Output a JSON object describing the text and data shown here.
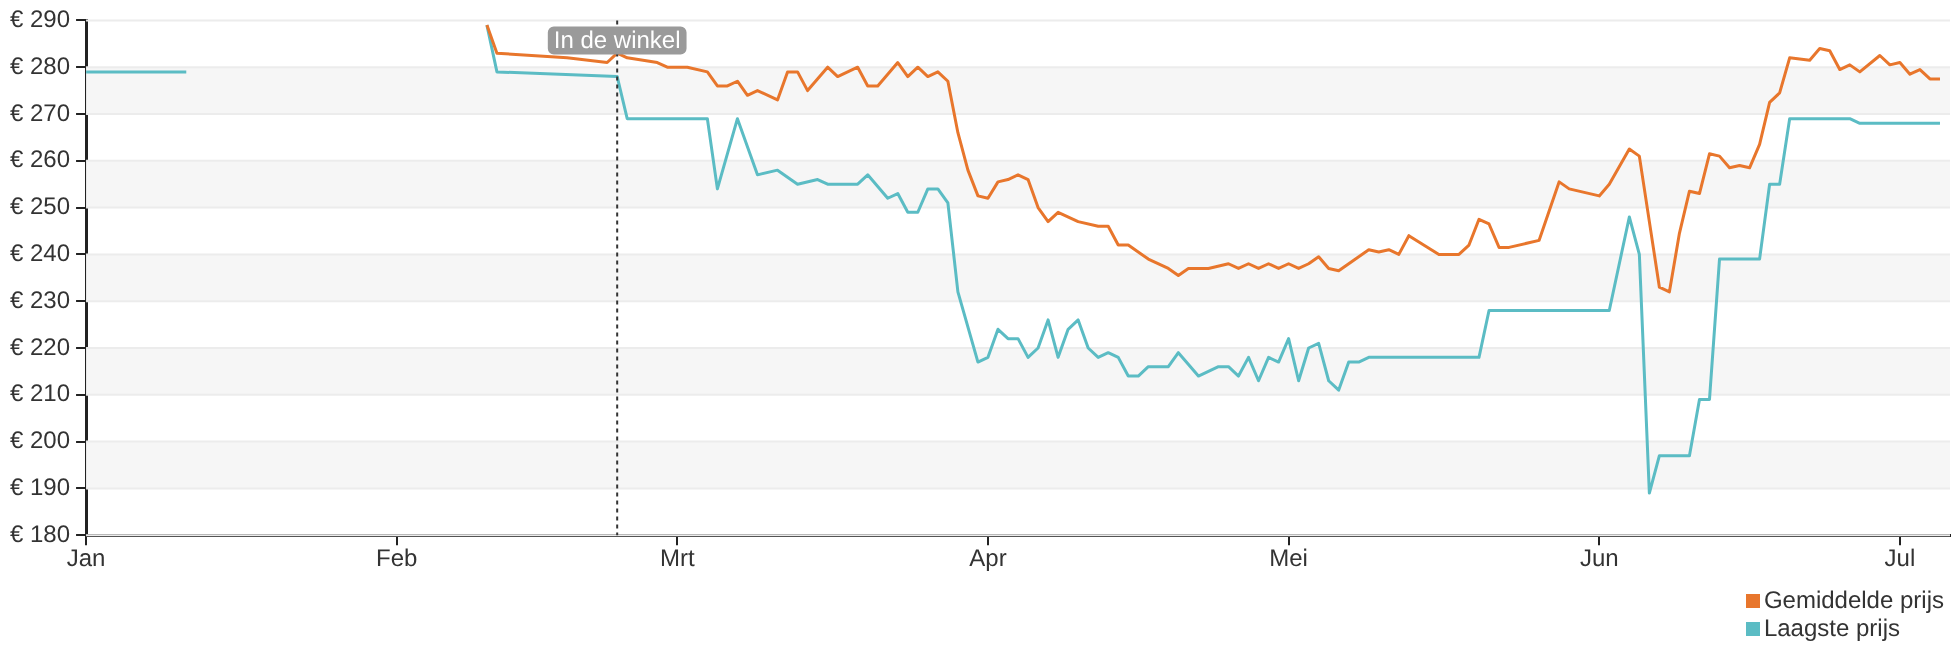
{
  "chart_data": {
    "type": "line",
    "xlim": [
      "--01-01",
      "--07-06"
    ],
    "xticks": [
      {
        "value": "--01-01",
        "label": "Jan"
      },
      {
        "value": "--02-01",
        "label": "Feb"
      },
      {
        "value": "--03-01",
        "label": "Mrt"
      },
      {
        "value": "--04-01",
        "label": "Apr"
      },
      {
        "value": "--05-01",
        "label": "Mei"
      },
      {
        "value": "--06-01",
        "label": "Jun"
      },
      {
        "value": "--07-01",
        "label": "Jul"
      }
    ],
    "ylim": [
      180,
      290
    ],
    "yticks": [
      {
        "value": 180,
        "label": "€ 180"
      },
      {
        "value": 190,
        "label": "€ 190"
      },
      {
        "value": 200,
        "label": "€ 200"
      },
      {
        "value": 210,
        "label": "€ 210"
      },
      {
        "value": 220,
        "label": "€ 220"
      },
      {
        "value": 230,
        "label": "€ 230"
      },
      {
        "value": 240,
        "label": "€ 240"
      },
      {
        "value": 250,
        "label": "€ 250"
      },
      {
        "value": 260,
        "label": "€ 260"
      },
      {
        "value": 270,
        "label": "€ 270"
      },
      {
        "value": 280,
        "label": "€ 280"
      },
      {
        "value": 290,
        "label": "€ 290"
      }
    ],
    "grid": "y",
    "legend": "bottom right",
    "ref_lines": [
      {
        "axis": "x",
        "value": "--02-23",
        "label": "In de winkel",
        "color": "#333333",
        "line_style": "dotted"
      }
    ],
    "series": [
      {
        "name": "Gemiddelde prijs",
        "color": "#e8762c",
        "x": [
          "--02-10",
          "--02-11",
          "--02-18",
          "--02-22",
          "--02-23",
          "--02-24",
          "--02-27",
          "--02-28",
          "--03-02",
          "--03-04",
          "--03-05",
          "--03-06",
          "--03-07",
          "--03-08",
          "--03-09",
          "--03-11",
          "--03-12",
          "--03-13",
          "--03-14",
          "--03-16",
          "--03-17",
          "--03-19",
          "--03-20",
          "--03-21",
          "--03-23",
          "--03-24",
          "--03-25",
          "--03-26",
          "--03-27",
          "--03-28",
          "--03-29",
          "--03-30",
          "--03-31",
          "--04-01",
          "--04-02",
          "--04-03",
          "--04-04",
          "--04-05",
          "--04-06",
          "--04-07",
          "--04-08",
          "--04-10",
          "--04-12",
          "--04-13",
          "--04-14",
          "--04-15",
          "--04-17",
          "--04-19",
          "--04-20",
          "--04-21",
          "--04-23",
          "--04-25",
          "--04-26",
          "--04-27",
          "--04-28",
          "--04-29",
          "--04-30",
          "--05-01",
          "--05-02",
          "--05-03",
          "--05-04",
          "--05-05",
          "--05-06",
          "--05-07",
          "--05-09",
          "--05-10",
          "--05-11",
          "--05-12",
          "--05-13",
          "--05-16",
          "--05-18",
          "--05-19",
          "--05-20",
          "--05-21",
          "--05-22",
          "--05-23",
          "--05-26",
          "--05-28",
          "--05-29",
          "--06-01",
          "--06-02",
          "--06-04",
          "--06-05",
          "--06-07",
          "--06-08",
          "--06-09",
          "--06-10",
          "--06-11",
          "--06-12",
          "--06-13",
          "--06-14",
          "--06-15",
          "--06-16",
          "--06-17",
          "--06-18",
          "--06-19",
          "--06-20",
          "--06-22",
          "--06-23",
          "--06-24",
          "--06-25",
          "--06-26",
          "--06-27",
          "--06-29",
          "--06-30",
          "--07-01",
          "--07-02",
          "--07-03",
          "--07-04",
          "--07-05"
        ],
        "values": [
          289,
          283,
          282,
          281,
          283,
          282,
          281,
          280,
          280,
          279,
          276,
          276,
          277,
          274,
          275,
          273,
          279,
          279,
          275,
          280,
          278,
          280,
          276,
          276,
          281,
          278,
          280,
          278,
          279,
          277,
          266,
          258,
          252.5,
          252,
          255.5,
          256,
          257,
          256,
          250,
          247,
          249,
          247,
          246,
          246,
          242,
          242,
          239,
          237,
          235.5,
          237,
          237,
          238,
          237,
          238,
          237,
          238,
          237,
          238,
          237,
          238,
          239.5,
          237,
          236.5,
          238,
          241,
          240.5,
          241,
          240,
          244,
          240,
          240,
          242,
          247.5,
          246.5,
          241.5,
          241.5,
          243,
          255.5,
          254,
          252.5,
          255,
          262.5,
          261,
          233,
          232,
          244.5,
          253.5,
          253,
          261.5,
          261,
          258.5,
          259,
          258.5,
          263.5,
          272.5,
          274.5,
          282,
          281.5,
          284,
          283.5,
          279.5,
          280.5,
          279,
          282.5,
          280.5,
          281,
          278.5,
          279.5,
          277.5,
          277.5
        ]
      },
      {
        "name": "Laagste prijs",
        "color": "#5bbcc4",
        "x": [
          "--01-01",
          "--01-11",
          "--01-20",
          "--02-10",
          "--02-11",
          "--02-23",
          "--02-24",
          "--03-04",
          "--03-05",
          "--03-07",
          "--03-09",
          "--03-11",
          "--03-13",
          "--03-15",
          "--03-16",
          "--03-19",
          "--03-20",
          "--03-22",
          "--03-23",
          "--03-24",
          "--03-25",
          "--03-26",
          "--03-27",
          "--03-28",
          "--03-29",
          "--03-31",
          "--04-01",
          "--04-02",
          "--04-03",
          "--04-04",
          "--04-05",
          "--04-06",
          "--04-07",
          "--04-08",
          "--04-09",
          "--04-10",
          "--04-11",
          "--04-12",
          "--04-13",
          "--04-14",
          "--04-15",
          "--04-16",
          "--04-17",
          "--04-19",
          "--04-20",
          "--04-22",
          "--04-24",
          "--04-25",
          "--04-26",
          "--04-27",
          "--04-28",
          "--04-29",
          "--04-30",
          "--05-01",
          "--05-02",
          "--05-03",
          "--05-04",
          "--05-05",
          "--05-06",
          "--05-07",
          "--05-08",
          "--05-09",
          "--05-20",
          "--05-21",
          "--06-02",
          "--06-04",
          "--06-05",
          "--06-06",
          "--06-07",
          "--06-10",
          "--06-11",
          "--06-12",
          "--06-13",
          "--06-17",
          "--06-18",
          "--06-19",
          "--06-20",
          "--06-26",
          "--06-27",
          "--07-05"
        ],
        "values": [
          279,
          279,
          null,
          289,
          279,
          278,
          269,
          269,
          254,
          269,
          257,
          258,
          255,
          256,
          255,
          255,
          257,
          252,
          253,
          249,
          249,
          254,
          254,
          251,
          232,
          217,
          218,
          224,
          222,
          222,
          218,
          220,
          226,
          218,
          224,
          226,
          220,
          218,
          219,
          218,
          214,
          214,
          216,
          216,
          219,
          214,
          216,
          216,
          214,
          218,
          213,
          218,
          217,
          222,
          213,
          220,
          221,
          213,
          211,
          217,
          217,
          218,
          218,
          228,
          228,
          248,
          240,
          189,
          197,
          197,
          209,
          209,
          239,
          239,
          255,
          255,
          269,
          269,
          268,
          268
        ]
      }
    ]
  }
}
